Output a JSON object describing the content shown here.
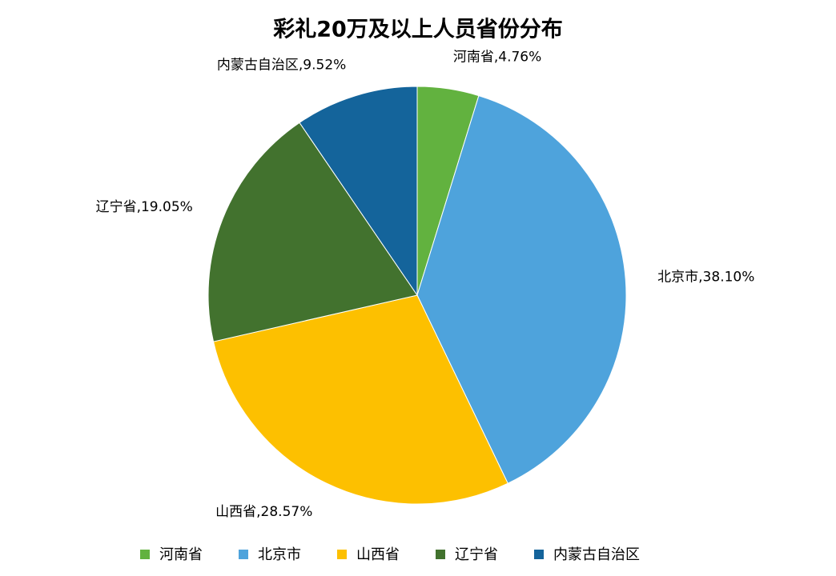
{
  "chart_data": {
    "type": "pie",
    "title": "彩礼20万及以上人员省份分布",
    "categories": [
      "河南省",
      "北京市",
      "山西省",
      "辽宁省",
      "内蒙古自治区"
    ],
    "values": [
      4.76,
      38.1,
      28.57,
      19.05,
      9.52
    ],
    "value_labels": [
      "河南省,4.76%",
      "北京市,38.10%",
      "山西省,28.57%",
      "辽宁省,19.05%",
      "内蒙古自治区,9.52%"
    ],
    "colors": [
      "#62b23f",
      "#4ea3dc",
      "#fdc000",
      "#42722e",
      "#14649b"
    ],
    "legend": "bottom"
  }
}
